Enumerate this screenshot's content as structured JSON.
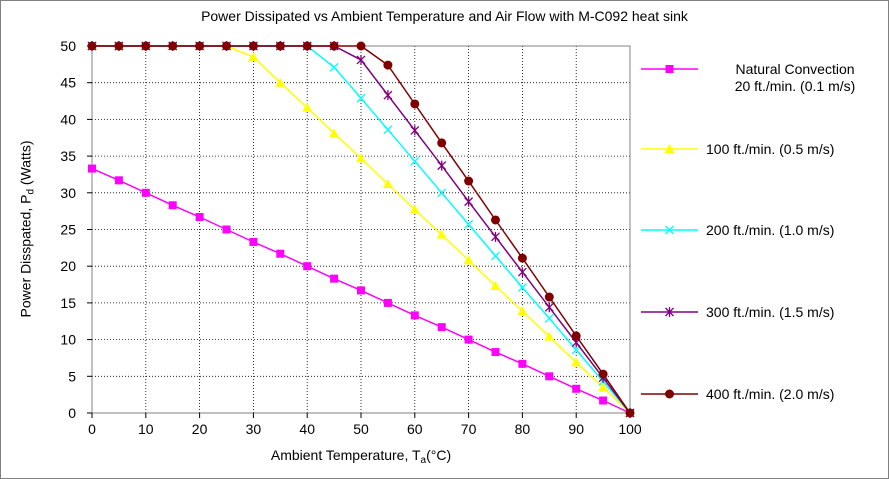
{
  "chart_data": {
    "type": "line",
    "title": "Power Dissipated vs Ambient Temperature and Air Flow with M-C092 heat sink",
    "xlabel_main": "Ambient Temperature, T",
    "xlabel_sub": "a",
    "xlabel_unit": "(°C)",
    "ylabel_main": "Power Disspated, P",
    "ylabel_sub": "d",
    "ylabel_unit": " (Watts)",
    "xlim": [
      0,
      100
    ],
    "ylim": [
      0,
      50
    ],
    "xticks": [
      0,
      10,
      20,
      30,
      40,
      50,
      60,
      70,
      80,
      90,
      100
    ],
    "yticks": [
      0,
      5,
      10,
      15,
      20,
      25,
      30,
      35,
      40,
      45,
      50
    ],
    "grid": "dotted",
    "legend_position": "right",
    "series": [
      {
        "name_line1": "Natural Convection",
        "name_line2": "20 ft./min. (0.1 m/s)",
        "color": "#ff00ff",
        "marker": "square",
        "x": [
          0,
          5,
          10,
          15,
          20,
          25,
          30,
          35,
          40,
          45,
          50,
          55,
          60,
          65,
          70,
          75,
          80,
          85,
          90,
          95,
          100
        ],
        "y": [
          33.3,
          31.7,
          30.0,
          28.3,
          26.7,
          25.0,
          23.3,
          21.7,
          20.0,
          18.3,
          16.7,
          15.0,
          13.3,
          11.7,
          10.0,
          8.3,
          6.7,
          5.0,
          3.3,
          1.7,
          0
        ]
      },
      {
        "name_line1": "100 ft./min. (0.5 m/s)",
        "name_line2": "",
        "color": "#ffff00",
        "marker": "triangle",
        "x": [
          0,
          5,
          10,
          15,
          20,
          25,
          30,
          35,
          40,
          45,
          50,
          55,
          60,
          65,
          70,
          75,
          80,
          85,
          90,
          95,
          100
        ],
        "y": [
          50,
          50,
          50,
          50,
          50,
          50,
          48.5,
          45.0,
          41.6,
          38.1,
          34.7,
          31.2,
          27.7,
          24.3,
          20.8,
          17.3,
          13.9,
          10.4,
          6.9,
          3.5,
          0
        ]
      },
      {
        "name_line1": "200 ft./min. (1.0 m/s)",
        "name_line2": "",
        "color": "#00ffff",
        "marker": "x",
        "x": [
          0,
          5,
          10,
          15,
          20,
          25,
          30,
          35,
          40,
          45,
          50,
          55,
          60,
          65,
          70,
          75,
          80,
          85,
          90,
          95,
          100
        ],
        "y": [
          50,
          50,
          50,
          50,
          50,
          50,
          50,
          50,
          50,
          47.1,
          42.9,
          38.6,
          34.3,
          30.0,
          25.7,
          21.4,
          17.1,
          12.9,
          8.6,
          4.3,
          0
        ]
      },
      {
        "name_line1": "300 ft./min. (1.5 m/s)",
        "name_line2": "",
        "color": "#800080",
        "marker": "star",
        "x": [
          0,
          5,
          10,
          15,
          20,
          25,
          30,
          35,
          40,
          45,
          50,
          55,
          60,
          65,
          70,
          75,
          80,
          85,
          90,
          95,
          100
        ],
        "y": [
          50,
          50,
          50,
          50,
          50,
          50,
          50,
          50,
          50,
          50,
          48.1,
          43.3,
          38.5,
          33.7,
          28.8,
          24.0,
          19.2,
          14.4,
          9.6,
          4.8,
          0
        ]
      },
      {
        "name_line1": "400 ft./min. (2.0 m/s)",
        "name_line2": "",
        "color": "#800000",
        "marker": "circle",
        "x": [
          0,
          5,
          10,
          15,
          20,
          25,
          30,
          35,
          40,
          45,
          50,
          55,
          60,
          65,
          70,
          75,
          80,
          85,
          90,
          95,
          100
        ],
        "y": [
          50,
          50,
          50,
          50,
          50,
          50,
          50,
          50,
          50,
          50,
          50,
          47.4,
          42.1,
          36.8,
          31.6,
          26.3,
          21.1,
          15.8,
          10.5,
          5.3,
          0
        ]
      }
    ]
  }
}
